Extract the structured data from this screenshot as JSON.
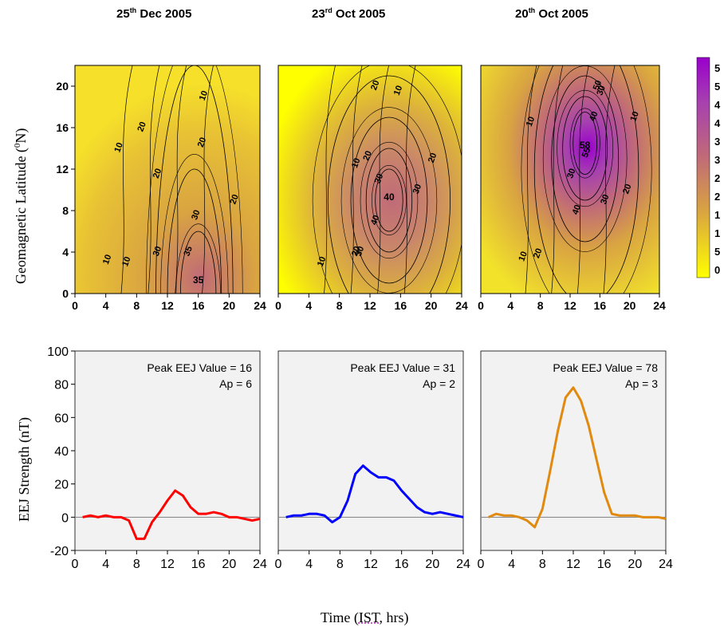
{
  "panels": [
    {
      "title_day": "25",
      "title_sup": "th",
      "title_rest": " Dec 2005",
      "peak_label": "Peak EEJ Value = 16",
      "ap_label": "Ap = 6"
    },
    {
      "title_day": "23",
      "title_sup": "rd",
      "title_rest": " Oct 2005",
      "peak_label": "Peak EEJ Value = 31",
      "ap_label": "Ap = 2"
    },
    {
      "title_day": "20",
      "title_sup": "th",
      "title_rest": " Oct 2005",
      "peak_label": "Peak EEJ Value = 78",
      "ap_label": "Ap = 3"
    }
  ],
  "ylabel_top_pre": "Geomagnetic Latitude (",
  "ylabel_top_sup": "0",
  "ylabel_top_post": "N)",
  "ylabel_bottom": "EEJ Strength (nT)",
  "xlabel_pre": "Time (",
  "xlabel_ist": "IST",
  "xlabel_post": ", hrs)",
  "colorbar_labels": [
    "5",
    "5",
    "4",
    "4",
    "3",
    "3",
    "2",
    "2",
    "1",
    "1",
    "5",
    "0"
  ],
  "colors": {
    "low": "#ffff00",
    "mid": "#d9a441",
    "high": "#c06a78",
    "peak": "#9900cc",
    "series": [
      "#ff0000",
      "#0000ff",
      "#e08a10"
    ],
    "zero_line": "#808080",
    "grid_bg": "#f2f2f2"
  },
  "chart_data": [
    {
      "type": "heatmap",
      "title": "25th Dec 2005",
      "xlabel": "",
      "ylabel": "Geomagnetic Latitude (0N)",
      "xlim": [
        0,
        24
      ],
      "ylim": [
        0,
        22
      ],
      "xticks": [
        0,
        4,
        8,
        12,
        16,
        20,
        24
      ],
      "yticks": [
        0,
        4,
        8,
        12,
        16,
        20
      ],
      "peak": {
        "x": 16,
        "y": 1,
        "value": 35
      },
      "contour_labels": [
        "10",
        "10",
        "20",
        "20",
        "10",
        "30",
        "20",
        "35",
        "30",
        "20",
        "10"
      ]
    },
    {
      "type": "heatmap",
      "title": "23rd Oct 2005",
      "xlim": [
        0,
        24
      ],
      "ylim": [
        0,
        22
      ],
      "xticks": [
        0,
        4,
        8,
        12,
        16,
        20,
        24
      ],
      "peak": {
        "x": 14.5,
        "y": 9,
        "value": 40
      },
      "contour_labels": [
        "20",
        "10",
        "10",
        "20",
        "30",
        "30",
        "20",
        "40",
        "10",
        "20",
        "30"
      ]
    },
    {
      "type": "heatmap",
      "title": "20th Oct 2005",
      "xlim": [
        0,
        24
      ],
      "ylim": [
        0,
        22
      ],
      "xticks": [
        0,
        4,
        8,
        12,
        16,
        20,
        24
      ],
      "peak": {
        "x": 14,
        "y": 14,
        "value": 58
      },
      "contour_labels": [
        "50",
        "30",
        "10",
        "40",
        "10",
        "55",
        "30",
        "20",
        "40",
        "30",
        "10",
        "20"
      ]
    },
    {
      "type": "line",
      "title": "25th Dec 2005",
      "xlabel": "Time (IST, hrs)",
      "ylabel": "EEJ Strength (nT)",
      "xlim": [
        0,
        24
      ],
      "ylim": [
        -20,
        100
      ],
      "xticks": [
        0,
        4,
        8,
        12,
        16,
        20,
        24
      ],
      "yticks": [
        -20,
        0,
        20,
        40,
        60,
        80,
        100
      ],
      "series": [
        {
          "color": "#ff0000",
          "x": [
            1,
            2,
            3,
            4,
            5,
            6,
            7,
            8,
            9,
            10,
            11,
            12,
            13,
            14,
            15,
            16,
            17,
            18,
            19,
            20,
            21,
            22,
            23,
            24
          ],
          "y": [
            0,
            1,
            0,
            1,
            0,
            0,
            -2,
            -13,
            -13,
            -3,
            3,
            10,
            16,
            13,
            6,
            2,
            2,
            3,
            2,
            0,
            0,
            -1,
            -2,
            -1
          ]
        }
      ]
    },
    {
      "type": "line",
      "title": "23rd Oct 2005",
      "xlim": [
        0,
        24
      ],
      "ylim": [
        -20,
        100
      ],
      "xticks": [
        0,
        4,
        8,
        12,
        16,
        20,
        24
      ],
      "series": [
        {
          "color": "#0000ff",
          "x": [
            1,
            2,
            3,
            4,
            5,
            6,
            7,
            8,
            9,
            10,
            11,
            12,
            13,
            14,
            15,
            16,
            17,
            18,
            19,
            20,
            21,
            22,
            23,
            24
          ],
          "y": [
            0,
            1,
            1,
            2,
            2,
            1,
            -3,
            0,
            10,
            26,
            31,
            27,
            24,
            24,
            22,
            16,
            11,
            6,
            3,
            2,
            3,
            2,
            1,
            0
          ]
        }
      ]
    },
    {
      "type": "line",
      "title": "20th Oct 2005",
      "xlim": [
        0,
        24
      ],
      "ylim": [
        -20,
        100
      ],
      "xticks": [
        0,
        4,
        8,
        12,
        16,
        20,
        24
      ],
      "series": [
        {
          "color": "#e08a10",
          "x": [
            1,
            2,
            3,
            4,
            5,
            6,
            7,
            8,
            9,
            10,
            11,
            12,
            13,
            14,
            15,
            16,
            17,
            18,
            19,
            20,
            21,
            22,
            23,
            24
          ],
          "y": [
            0,
            2,
            1,
            1,
            0,
            -2,
            -6,
            5,
            28,
            52,
            72,
            78,
            70,
            55,
            35,
            15,
            2,
            1,
            1,
            1,
            0,
            0,
            0,
            -1
          ]
        }
      ]
    }
  ]
}
